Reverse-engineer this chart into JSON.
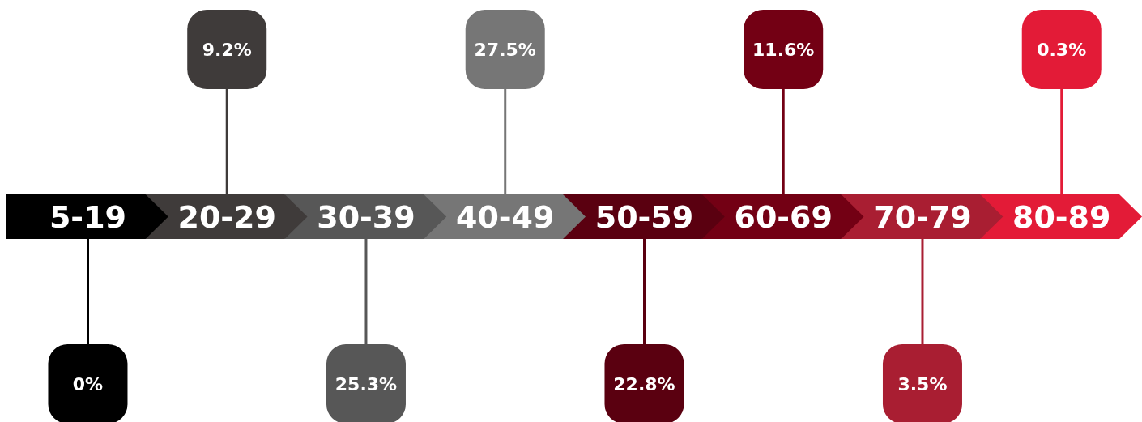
{
  "chart_data": {
    "type": "other",
    "categories": [
      "5-19",
      "20-29",
      "30-39",
      "40-49",
      "50-59",
      "60-69",
      "70-79",
      "80-89"
    ],
    "values": [
      0,
      9.2,
      25.3,
      27.5,
      22.8,
      11.6,
      3.5,
      0.3
    ],
    "value_labels": [
      "0%",
      "9.2%",
      "25.3%",
      "27.5%",
      "22.8%",
      "11.6%",
      "3.5%",
      "0.3%"
    ],
    "colors": [
      "#000000",
      "#3f3b3a",
      "#575757",
      "#767676",
      "#5a0010",
      "#730014",
      "#a91e32",
      "#e31b37"
    ]
  }
}
